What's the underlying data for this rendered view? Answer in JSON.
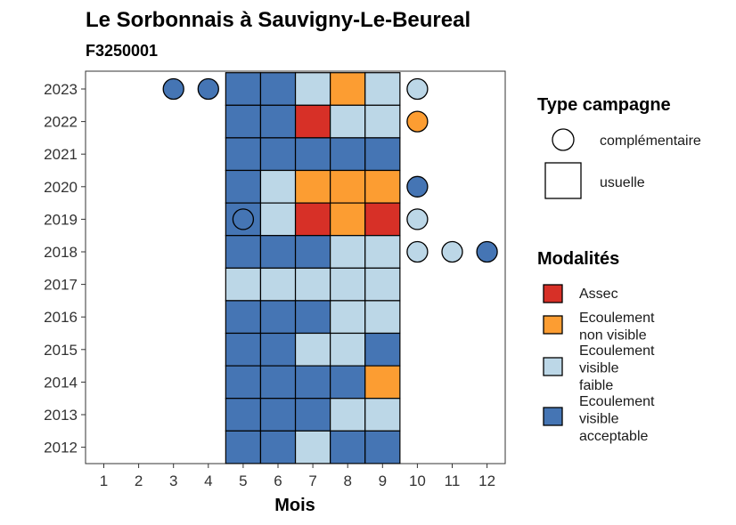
{
  "chart_data": {
    "type": "heatmap",
    "title": "Le Sorbonnais à Sauvigny-Le-Beureal",
    "subtitle": "F3250001",
    "xlabel": "Mois",
    "ylabel": "",
    "x_ticks": [
      1,
      2,
      3,
      4,
      5,
      6,
      7,
      8,
      9,
      10,
      11,
      12
    ],
    "y_ticks": [
      2012,
      2013,
      2014,
      2015,
      2016,
      2017,
      2018,
      2019,
      2020,
      2021,
      2022,
      2023
    ],
    "colors": {
      "Assec": "#d73027",
      "Ecoulement non visible": "#fc9d32",
      "Ecoulement visible faible": "#bcd7e7",
      "Ecoulement visible acceptable": "#4575b4"
    },
    "usuelle": [
      {
        "year": 2023,
        "values": {
          "5": "acceptable",
          "6": "acceptable",
          "7": "faible",
          "8": "nonvisible",
          "9": "faible"
        }
      },
      {
        "year": 2022,
        "values": {
          "5": "acceptable",
          "6": "acceptable",
          "7": "assec",
          "8": "faible",
          "9": "faible"
        }
      },
      {
        "year": 2021,
        "values": {
          "5": "acceptable",
          "6": "acceptable",
          "7": "acceptable",
          "8": "acceptable",
          "9": "acceptable"
        }
      },
      {
        "year": 2020,
        "values": {
          "5": "acceptable",
          "6": "faible",
          "7": "nonvisible",
          "8": "nonvisible",
          "9": "nonvisible"
        }
      },
      {
        "year": 2019,
        "values": {
          "5": "acceptable",
          "6": "faible",
          "7": "assec",
          "8": "nonvisible",
          "9": "assec"
        }
      },
      {
        "year": 2018,
        "values": {
          "5": "acceptable",
          "6": "acceptable",
          "7": "acceptable",
          "8": "faible",
          "9": "faible"
        }
      },
      {
        "year": 2017,
        "values": {
          "5": "faible",
          "6": "faible",
          "7": "faible",
          "8": "faible",
          "9": "faible"
        }
      },
      {
        "year": 2016,
        "values": {
          "5": "acceptable",
          "6": "acceptable",
          "7": "acceptable",
          "8": "faible",
          "9": "faible"
        }
      },
      {
        "year": 2015,
        "values": {
          "5": "acceptable",
          "6": "acceptable",
          "7": "faible",
          "8": "faible",
          "9": "acceptable"
        }
      },
      {
        "year": 2014,
        "values": {
          "5": "acceptable",
          "6": "acceptable",
          "7": "acceptable",
          "8": "acceptable",
          "9": "nonvisible"
        }
      },
      {
        "year": 2013,
        "values": {
          "5": "acceptable",
          "6": "acceptable",
          "7": "acceptable",
          "8": "faible",
          "9": "faible"
        }
      },
      {
        "year": 2012,
        "values": {
          "5": "acceptable",
          "6": "acceptable",
          "7": "faible",
          "8": "acceptable",
          "9": "acceptable"
        }
      }
    ],
    "complementaire": [
      {
        "year": 2023,
        "month": 3,
        "value": "acceptable"
      },
      {
        "year": 2023,
        "month": 4,
        "value": "acceptable"
      },
      {
        "year": 2023,
        "month": 10,
        "value": "faible"
      },
      {
        "year": 2022,
        "month": 10,
        "value": "nonvisible"
      },
      {
        "year": 2020,
        "month": 10,
        "value": "acceptable"
      },
      {
        "year": 2019,
        "month": 5,
        "value": "acceptable"
      },
      {
        "year": 2019,
        "month": 10,
        "value": "faible"
      },
      {
        "year": 2018,
        "month": 10,
        "value": "faible"
      },
      {
        "year": 2018,
        "month": 11,
        "value": "faible"
      },
      {
        "year": 2018,
        "month": 12,
        "value": "acceptable"
      }
    ]
  },
  "legend": {
    "type_title": "Type campagne",
    "type_items": [
      {
        "label": "complémentaire",
        "shape": "circle"
      },
      {
        "label": "usuelle",
        "shape": "square"
      }
    ],
    "mod_title": "Modalités",
    "mod_items": [
      {
        "key": "assec",
        "lines": [
          "Assec"
        ],
        "color": "#d73027"
      },
      {
        "key": "nonvisible",
        "lines": [
          "Ecoulement",
          "non visible"
        ],
        "color": "#fc9d32"
      },
      {
        "key": "faible",
        "lines": [
          "Ecoulement",
          "visible",
          "faible"
        ],
        "color": "#bcd7e7"
      },
      {
        "key": "acceptable",
        "lines": [
          "Ecoulement",
          "visible",
          "acceptable"
        ],
        "color": "#4575b4"
      }
    ]
  }
}
